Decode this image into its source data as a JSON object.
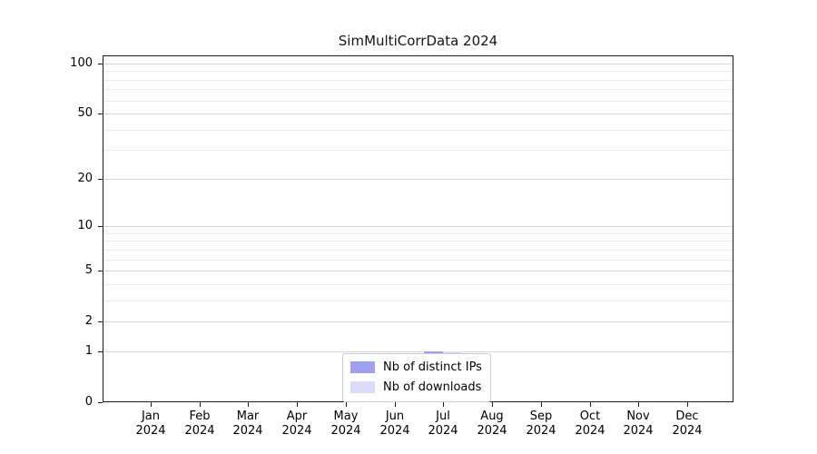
{
  "chart_data": {
    "type": "bar",
    "title": "SimMultiCorrData 2024",
    "x_categories": [
      "Jan",
      "Feb",
      "Mar",
      "Apr",
      "May",
      "Jun",
      "Jul",
      "Aug",
      "Sep",
      "Oct",
      "Nov",
      "Dec"
    ],
    "x_year": "2024",
    "series": [
      {
        "name": "Nb of distinct IPs",
        "color": "#a0a0f0",
        "values": [
          0,
          0,
          0,
          0,
          0,
          0,
          1,
          0,
          0,
          0,
          0,
          0
        ]
      },
      {
        "name": "Nb of downloads",
        "color": "#dcdcfa",
        "values": [
          0,
          0,
          0,
          0,
          0,
          0,
          1,
          0,
          0,
          0,
          0,
          0
        ]
      }
    ],
    "y_scale": "log1p",
    "y_major_ticks": [
      0,
      1,
      2,
      5,
      10,
      20,
      50,
      100
    ],
    "y_minor_ticks": [
      3,
      4,
      6,
      7,
      8,
      9,
      30,
      40,
      60,
      70,
      80,
      90
    ],
    "ylim": [
      0,
      112
    ],
    "grid": true,
    "legend_position": "lower center"
  },
  "colors": {
    "spine": "#1a1a1a",
    "grid_major": "#d7d7d7",
    "grid_minor": "#ececec",
    "text": "#000000",
    "legend_border": "#cccccc",
    "background": "#ffffff"
  }
}
